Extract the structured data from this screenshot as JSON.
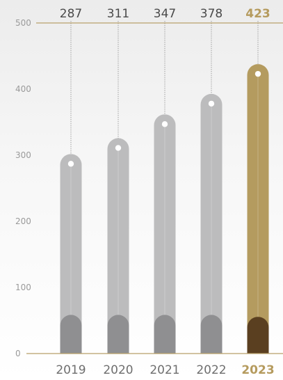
{
  "chart_data": {
    "type": "bar",
    "categories": [
      "2019",
      "2020",
      "2021",
      "2022",
      "2023"
    ],
    "values": [
      287,
      311,
      347,
      378,
      423
    ],
    "value_labels": [
      "287",
      "311",
      "347",
      "378",
      "423"
    ],
    "base_values": [
      48,
      48,
      48,
      48,
      45
    ],
    "highlight_index": 4,
    "ylim": [
      0,
      500
    ],
    "yticks": [
      0,
      100,
      200,
      300,
      400,
      500
    ],
    "ytick_labels": [
      "0",
      "100",
      "200",
      "300",
      "400",
      "500"
    ],
    "title": "",
    "xlabel": "",
    "ylabel": "",
    "grid": false,
    "colors": {
      "bar": "#bcbcbd",
      "bar_base": "#8f8f91",
      "highlight_bar": "#b49b5f",
      "highlight_base": "#5a3f20",
      "axis": "#b9a06a",
      "connector": "#8c8c8c",
      "marker": "#ffffff"
    }
  }
}
